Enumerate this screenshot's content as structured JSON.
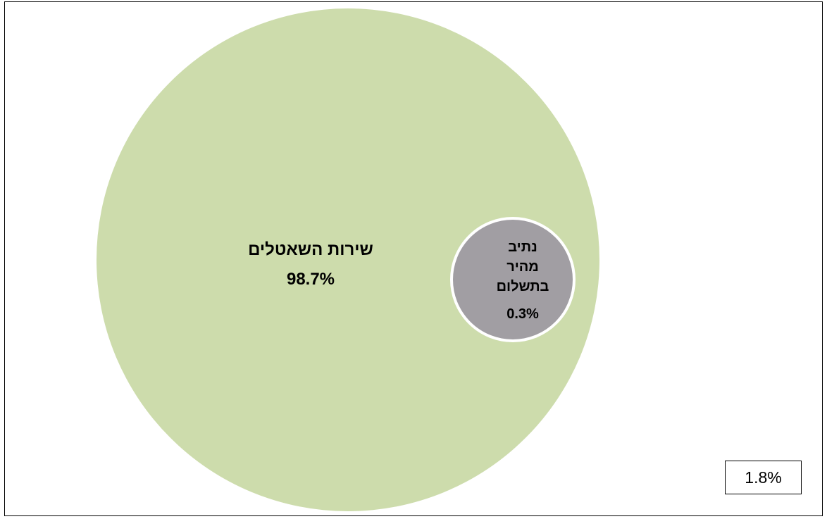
{
  "chart_data": {
    "type": "bubble",
    "series": [
      {
        "label_lines": [
          "שירות השאטלים"
        ],
        "value_label": "98.7%",
        "value": 98.7,
        "color": "#cddcac"
      },
      {
        "label_lines": [
          "נתיב",
          "מהיר",
          "בתשלום"
        ],
        "value_label": "0.3%",
        "value": 0.3,
        "color": "#a19ea3"
      }
    ],
    "other": {
      "value_label": "1.8%",
      "value": 1.8
    }
  }
}
